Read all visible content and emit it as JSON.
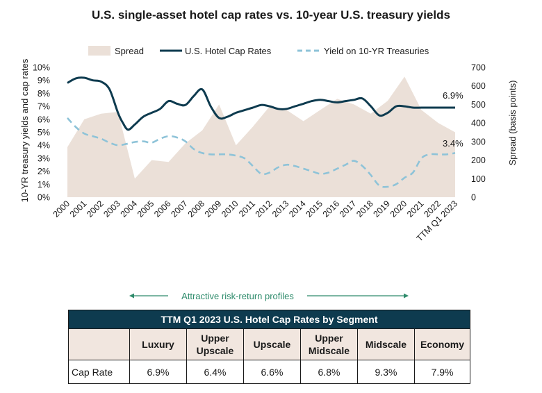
{
  "chart_data": {
    "type": "line+area",
    "title": "U.S. single-asset hotel cap rates vs. 10-year U.S. treasury yields",
    "categories": [
      "2000",
      "2001",
      "2002",
      "2003",
      "2004",
      "2005",
      "2006",
      "2007",
      "2008",
      "2009",
      "2010",
      "2011",
      "2012",
      "2013",
      "2014",
      "2015",
      "2016",
      "2017",
      "2018",
      "2019",
      "2020",
      "2021",
      "2022",
      "TTM Q1 2023"
    ],
    "y_left_label": "10-YR treasury yields and cap rates",
    "y_left_ticks": [
      "0%",
      "1%",
      "2%",
      "3%",
      "4%",
      "5%",
      "6%",
      "7%",
      "8%",
      "9%",
      "10%"
    ],
    "y_left_range": [
      0,
      10
    ],
    "y_right_label": "Spread (basis points)",
    "y_right_ticks": [
      "0",
      "100",
      "200",
      "300",
      "400",
      "500",
      "600",
      "700"
    ],
    "y_right_range": [
      0,
      700
    ],
    "legend": {
      "spread": "Spread",
      "cap_rates": "U.S. Hotel Cap Rates",
      "treasury": "Yield on 10-YR Treasuries"
    },
    "series": [
      {
        "name": "U.S. Hotel Cap Rates",
        "axis": "left",
        "color": "#0e3b4f",
        "x": [
          0,
          0.5,
          1,
          1.5,
          2,
          2.5,
          3,
          3.3,
          3.6,
          4,
          4.5,
          5,
          5.5,
          6,
          6.5,
          7,
          7.5,
          8,
          8.5,
          9,
          9.5,
          10,
          10.5,
          11,
          11.5,
          12,
          12.5,
          13,
          13.5,
          14,
          14.5,
          15,
          15.5,
          16,
          16.5,
          17,
          17.5,
          18,
          18.5,
          19,
          19.5,
          20,
          20.5,
          21,
          21.5,
          22,
          22.5,
          23
        ],
        "values": [
          8.8,
          9.15,
          9.2,
          9.0,
          8.9,
          8.3,
          6.5,
          5.7,
          5.2,
          5.6,
          6.2,
          6.5,
          6.8,
          7.4,
          7.2,
          7.1,
          7.8,
          8.3,
          7.0,
          6.1,
          6.2,
          6.5,
          6.7,
          6.9,
          7.1,
          7.0,
          6.8,
          6.8,
          7.0,
          7.2,
          7.4,
          7.5,
          7.4,
          7.3,
          7.4,
          7.5,
          7.6,
          7.0,
          6.3,
          6.5,
          7.0,
          7.0,
          6.9,
          6.9,
          6.9,
          6.9,
          6.9,
          6.9
        ]
      },
      {
        "name": "Yield on 10-YR Treasuries",
        "axis": "left",
        "color": "#8ec3d8",
        "x": [
          0,
          0.5,
          1,
          1.5,
          2,
          2.5,
          3,
          3.5,
          4,
          4.5,
          5,
          5.5,
          6,
          6.5,
          7,
          7.5,
          8,
          8.5,
          9,
          9.5,
          10,
          10.5,
          11,
          11.5,
          12,
          12.5,
          13,
          13.5,
          14,
          14.5,
          15,
          15.5,
          16,
          16.5,
          17,
          17.5,
          18,
          18.5,
          19,
          19.5,
          20,
          20.5,
          21,
          21.5,
          22,
          22.5,
          23
        ],
        "values": [
          6.1,
          5.4,
          4.9,
          4.7,
          4.5,
          4.2,
          4.0,
          4.1,
          4.25,
          4.3,
          4.2,
          4.5,
          4.7,
          4.6,
          4.3,
          3.7,
          3.4,
          3.3,
          3.3,
          3.3,
          3.2,
          3.0,
          2.4,
          1.8,
          1.9,
          2.3,
          2.5,
          2.4,
          2.2,
          2.0,
          1.8,
          1.9,
          2.2,
          2.5,
          2.8,
          2.4,
          1.7,
          0.9,
          0.8,
          1.0,
          1.5,
          1.9,
          3.0,
          3.3,
          3.3,
          3.3,
          3.4
        ]
      },
      {
        "name": "Spread",
        "axis": "right",
        "color": "#ebe0d8",
        "x": [
          0,
          1,
          2,
          3,
          4,
          5,
          6,
          7,
          8,
          9,
          10,
          11,
          12,
          13,
          14,
          15,
          16,
          17,
          18,
          19,
          20,
          21,
          22,
          23
        ],
        "values": [
          270,
          420,
          450,
          460,
          100,
          200,
          190,
          290,
          360,
          500,
          280,
          380,
          490,
          470,
          410,
          470,
          530,
          500,
          450,
          520,
          650,
          470,
          400,
          350
        ]
      }
    ],
    "annotations": {
      "cap_rate_label": "6.9%",
      "treasury_label": "3.4%"
    },
    "arrow_label": "Attractive risk-return profiles"
  },
  "colors": {
    "cap_rate_line": "#0e3b4f",
    "treasury_line": "#8ec3d8",
    "spread_area": "#ebe0d8",
    "arrow": "#2e8b6b",
    "table_header_bg": "#0e3b4f",
    "table_col_header_bg": "#f1e6df"
  },
  "segment_table": {
    "title": "TTM Q1 2023 U.S. Hotel Cap Rates by Segment",
    "columns": [
      {
        "line1": "Luxury",
        "line2": ""
      },
      {
        "line1": "Upper",
        "line2": "Upscale"
      },
      {
        "line1": "Upscale",
        "line2": ""
      },
      {
        "line1": "Upper",
        "line2": "Midscale"
      },
      {
        "line1": "Midscale",
        "line2": ""
      },
      {
        "line1": "Economy",
        "line2": ""
      }
    ],
    "row_label": "Cap Rate",
    "values": [
      "6.9%",
      "6.4%",
      "6.6%",
      "6.8%",
      "9.3%",
      "7.9%"
    ]
  }
}
